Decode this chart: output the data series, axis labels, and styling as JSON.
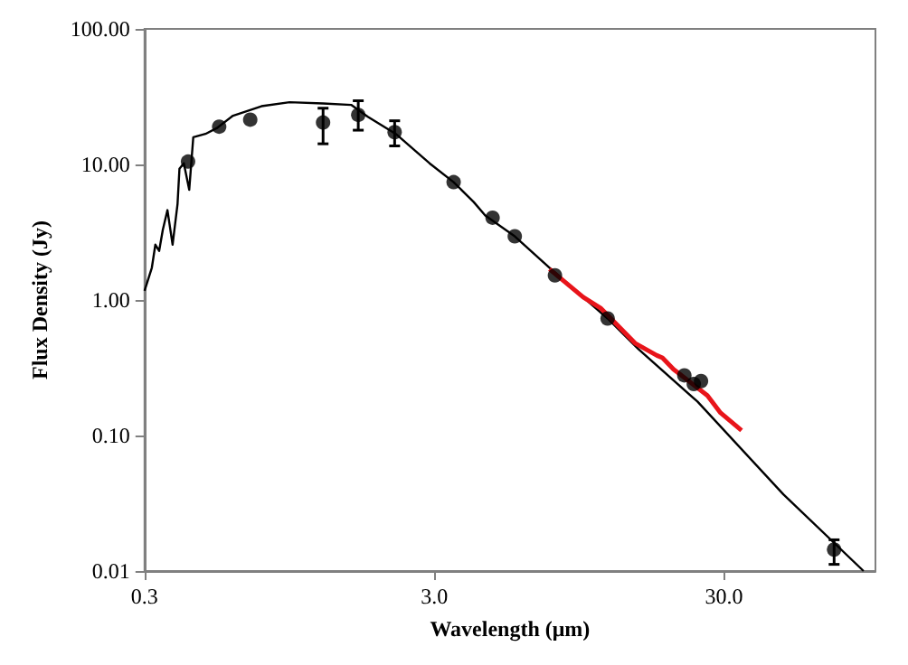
{
  "chart_data": {
    "type": "line",
    "xlabel": "Wavelength (μm)",
    "ylabel": "Flux Density (Jy)",
    "log": "xy",
    "xlim": [
      0.3,
      100
    ],
    "xticks": [
      {
        "value": 0.3,
        "label": "0.3"
      },
      {
        "value": 3,
        "label": "3.0"
      },
      {
        "value": 30,
        "label": "30.0"
      }
    ],
    "ylim": [
      0.01,
      100
    ],
    "yticks": [
      {
        "value": 0.01,
        "label": "0.01"
      },
      {
        "value": 0.1,
        "label": "0.10"
      },
      {
        "value": 1,
        "label": "1.00"
      },
      {
        "value": 10,
        "label": "10.00"
      },
      {
        "value": 100,
        "label": "100.00"
      }
    ],
    "grid": false,
    "series": [
      {
        "color": "#000000",
        "x": [
          0.3,
          0.318,
          0.327,
          0.337,
          0.347,
          0.36,
          0.375,
          0.39,
          0.396,
          0.41,
          0.428,
          0.442,
          0.487,
          0.532,
          0.606,
          0.76,
          0.95,
          1.24,
          1.55,
          1.77,
          2.21,
          2.59,
          2.89,
          3.5,
          4.1,
          4.5,
          5.69,
          7.5,
          11.9,
          15.2,
          24.3,
          48.1,
          91
        ],
        "values": [
          1.17,
          1.73,
          2.56,
          2.3,
          3.3,
          4.6,
          2.56,
          5.1,
          9.3,
          10.2,
          6.5,
          15.9,
          16.8,
          18.5,
          22.9,
          26.9,
          28.8,
          28.2,
          27.5,
          22.5,
          16.8,
          12.5,
          10.2,
          7.4,
          5.3,
          4.2,
          2.95,
          1.73,
          0.73,
          0.434,
          0.178,
          0.0368,
          0.01
        ]
      },
      {
        "color": "#e8141a",
        "x": [
          7.5,
          9.8,
          11.3,
          14.8,
          17.6,
          18.4,
          20.1,
          26.3,
          29.2,
          34.5
        ],
        "values": [
          1.69,
          1.05,
          0.865,
          0.48,
          0.39,
          0.374,
          0.308,
          0.197,
          0.147,
          0.109
        ]
      },
      {
        "type": "scatter",
        "color": "#000000",
        "marker": "circle",
        "x": [
          0.424,
          0.543,
          0.695,
          1.24,
          1.64,
          2.19,
          3.5,
          4.77,
          5.69,
          7.83,
          11.9,
          21.9,
          23.6,
          25,
          72
        ],
        "values": [
          10.5,
          19,
          21.4,
          20.4,
          23.2,
          17.3,
          7.4,
          4.05,
          2.95,
          1.52,
          0.73,
          0.278,
          0.24,
          0.252,
          0.0144
        ],
        "errors": [
          null,
          null,
          null,
          [
            14.2,
            26
          ],
          [
            17.9,
            29.5
          ],
          [
            13.7,
            21
          ],
          null,
          null,
          null,
          null,
          null,
          null,
          null,
          null,
          [
            0.0112,
            0.017
          ]
        ]
      }
    ]
  }
}
